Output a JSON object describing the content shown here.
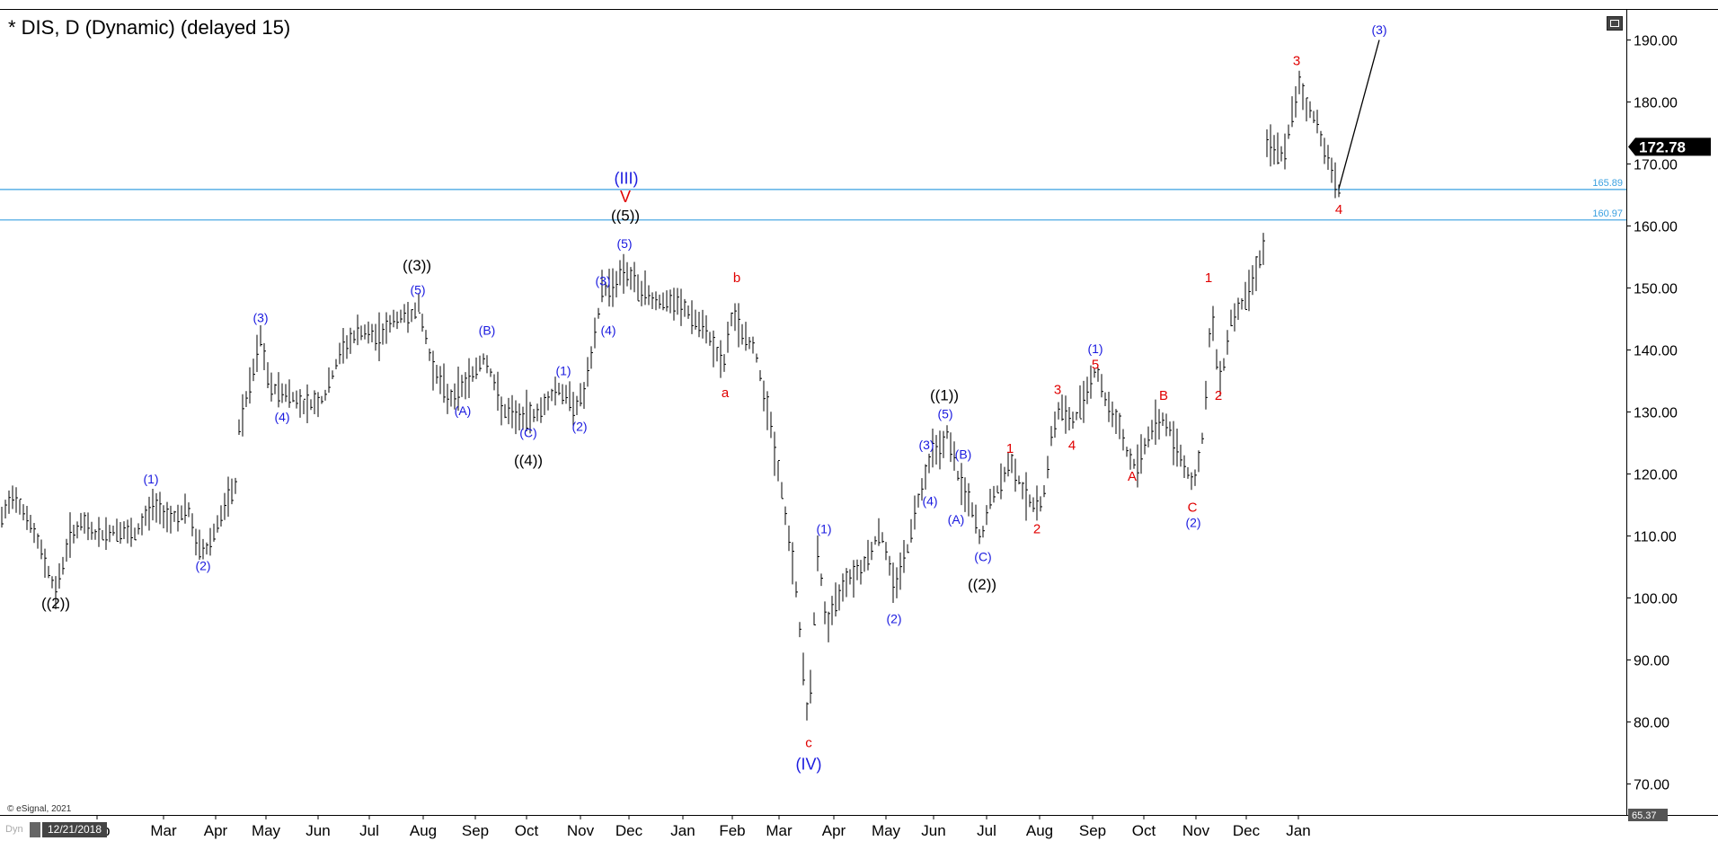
{
  "chart_title": "* DIS, D (Dynamic) (delayed 15)",
  "copyright": "© eSignal, 2021",
  "dyn_label": "Dyn",
  "date_stamp": "12/21/2018",
  "colors": {
    "blue": "#1a1adf",
    "red": "#e00000",
    "black": "#000000",
    "hline": "#3aa0e0",
    "bars": "#000000",
    "lastPriceBox": "#000000",
    "minBox": "#555555"
  },
  "chart_data": {
    "type": "line",
    "symbol": "DIS",
    "ylim": [
      65,
      195
    ],
    "yticks": [
      70,
      80,
      90,
      100,
      110,
      120,
      130,
      140,
      150,
      160,
      170,
      180,
      190
    ],
    "ytick_labels": [
      "70.00",
      "80.00",
      "90.00",
      "100.00",
      "110.00",
      "120.00",
      "130.00",
      "140.00",
      "150.00",
      "160.00",
      "170.00",
      "180.00",
      "190.00"
    ],
    "x_range": [
      0,
      1810
    ],
    "x_months": [
      {
        "label": "Feb",
        "x": 108
      },
      {
        "label": "Mar",
        "x": 182
      },
      {
        "label": "Apr",
        "x": 240
      },
      {
        "label": "May",
        "x": 296
      },
      {
        "label": "Jun",
        "x": 354
      },
      {
        "label": "Jul",
        "x": 411
      },
      {
        "label": "Aug",
        "x": 471
      },
      {
        "label": "Sep",
        "x": 529
      },
      {
        "label": "Oct",
        "x": 586
      },
      {
        "label": "Nov",
        "x": 646
      },
      {
        "label": "Dec",
        "x": 700
      },
      {
        "label": "Jan",
        "x": 760
      },
      {
        "label": "Feb",
        "x": 815
      },
      {
        "label": "Mar",
        "x": 867
      },
      {
        "label": "Apr",
        "x": 928
      },
      {
        "label": "May",
        "x": 986
      },
      {
        "label": "Jun",
        "x": 1039
      },
      {
        "label": "Jul",
        "x": 1098
      },
      {
        "label": "Aug",
        "x": 1157
      },
      {
        "label": "Sep",
        "x": 1216
      },
      {
        "label": "Oct",
        "x": 1273
      },
      {
        "label": "Nov",
        "x": 1331
      },
      {
        "label": "Dec",
        "x": 1387
      },
      {
        "label": "Jan",
        "x": 1445
      }
    ],
    "price_path": [
      [
        0,
        112
      ],
      [
        15,
        117
      ],
      [
        30,
        113
      ],
      [
        45,
        108
      ],
      [
        62,
        101
      ],
      [
        78,
        110
      ],
      [
        92,
        112
      ],
      [
        110,
        110
      ],
      [
        130,
        111
      ],
      [
        150,
        110
      ],
      [
        170,
        115
      ],
      [
        190,
        113
      ],
      [
        210,
        114
      ],
      [
        220,
        108
      ],
      [
        230,
        108
      ],
      [
        245,
        113
      ],
      [
        262,
        118
      ],
      [
        265,
        127
      ],
      [
        280,
        135
      ],
      [
        290,
        142
      ],
      [
        300,
        134
      ],
      [
        320,
        133
      ],
      [
        340,
        131
      ],
      [
        360,
        132
      ],
      [
        380,
        140
      ],
      [
        400,
        143
      ],
      [
        420,
        142
      ],
      [
        440,
        145
      ],
      [
        460,
        146
      ],
      [
        466,
        147
      ],
      [
        480,
        138
      ],
      [
        500,
        132
      ],
      [
        520,
        135
      ],
      [
        540,
        139
      ],
      [
        560,
        130
      ],
      [
        580,
        129
      ],
      [
        600,
        130
      ],
      [
        620,
        134
      ],
      [
        640,
        131
      ],
      [
        650,
        133
      ],
      [
        660,
        140
      ],
      [
        670,
        150
      ],
      [
        680,
        150
      ],
      [
        695,
        153
      ],
      [
        710,
        150
      ],
      [
        730,
        148
      ],
      [
        760,
        147
      ],
      [
        790,
        142
      ],
      [
        805,
        137
      ],
      [
        815,
        146
      ],
      [
        825,
        143
      ],
      [
        840,
        140
      ],
      [
        855,
        130
      ],
      [
        870,
        117
      ],
      [
        885,
        103
      ],
      [
        893,
        90
      ],
      [
        900,
        79
      ],
      [
        910,
        108
      ],
      [
        920,
        95
      ],
      [
        940,
        103
      ],
      [
        960,
        105
      ],
      [
        980,
        111
      ],
      [
        995,
        102
      ],
      [
        1010,
        108
      ],
      [
        1020,
        115
      ],
      [
        1030,
        120
      ],
      [
        1040,
        125
      ],
      [
        1048,
        124
      ],
      [
        1055,
        127
      ],
      [
        1065,
        120
      ],
      [
        1080,
        115
      ],
      [
        1092,
        109
      ],
      [
        1100,
        115
      ],
      [
        1112,
        118
      ],
      [
        1125,
        122
      ],
      [
        1140,
        117
      ],
      [
        1155,
        114
      ],
      [
        1163,
        118
      ],
      [
        1170,
        126
      ],
      [
        1180,
        131
      ],
      [
        1192,
        128
      ],
      [
        1200,
        130
      ],
      [
        1210,
        134
      ],
      [
        1220,
        137
      ],
      [
        1230,
        132
      ],
      [
        1245,
        128
      ],
      [
        1255,
        123
      ],
      [
        1265,
        121
      ],
      [
        1280,
        127
      ],
      [
        1295,
        129
      ],
      [
        1305,
        126
      ],
      [
        1320,
        121
      ],
      [
        1328,
        118
      ],
      [
        1340,
        127
      ],
      [
        1348,
        147
      ],
      [
        1355,
        137
      ],
      [
        1360,
        136
      ],
      [
        1370,
        145
      ],
      [
        1385,
        148
      ],
      [
        1395,
        152
      ],
      [
        1405,
        156
      ],
      [
        1408,
        157
      ],
      [
        1410,
        173
      ],
      [
        1420,
        172
      ],
      [
        1430,
        172
      ],
      [
        1440,
        179
      ],
      [
        1446,
        183
      ],
      [
        1455,
        179
      ],
      [
        1465,
        177
      ],
      [
        1475,
        172
      ],
      [
        1482,
        169
      ],
      [
        1490,
        166
      ],
      [
        1535,
        190
      ]
    ],
    "last_price": 172.78,
    "last_price_label": "172.78",
    "min_label": "65.37",
    "hlines": [
      {
        "value": 165.89,
        "label": "165.89"
      },
      {
        "value": 160.97,
        "label": "160.97"
      }
    ],
    "annotations": [
      {
        "text": "((2))",
        "x": 62,
        "y": 99,
        "color": "black",
        "size": 17
      },
      {
        "text": "(1)",
        "x": 168,
        "y": 119,
        "color": "blue",
        "size": 14
      },
      {
        "text": "(2)",
        "x": 226,
        "y": 105,
        "color": "blue",
        "size": 14
      },
      {
        "text": "(3)",
        "x": 290,
        "y": 145,
        "color": "blue",
        "size": 14
      },
      {
        "text": "(4)",
        "x": 314,
        "y": 129,
        "color": "blue",
        "size": 14
      },
      {
        "text": "((3))",
        "x": 464,
        "y": 153.5,
        "color": "black",
        "size": 17
      },
      {
        "text": "(5)",
        "x": 465,
        "y": 149.5,
        "color": "blue",
        "size": 14
      },
      {
        "text": "(B)",
        "x": 542,
        "y": 143,
        "color": "blue",
        "size": 14
      },
      {
        "text": "(A)",
        "x": 515,
        "y": 130,
        "color": "blue",
        "size": 14
      },
      {
        "text": "(1)",
        "x": 627,
        "y": 136.5,
        "color": "blue",
        "size": 14
      },
      {
        "text": "(C)",
        "x": 588,
        "y": 126.5,
        "color": "blue",
        "size": 14
      },
      {
        "text": "((4))",
        "x": 588,
        "y": 122,
        "color": "black",
        "size": 17
      },
      {
        "text": "(2)",
        "x": 645,
        "y": 127.5,
        "color": "blue",
        "size": 14
      },
      {
        "text": "(3)",
        "x": 671,
        "y": 151,
        "color": "blue",
        "size": 14
      },
      {
        "text": "(4)",
        "x": 677,
        "y": 143,
        "color": "blue",
        "size": 14
      },
      {
        "text": "(5)",
        "x": 695,
        "y": 157,
        "color": "blue",
        "size": 14
      },
      {
        "text": "((5))",
        "x": 696,
        "y": 161.5,
        "color": "black",
        "size": 17
      },
      {
        "text": "V",
        "x": 696,
        "y": 164.5,
        "color": "red",
        "size": 18
      },
      {
        "text": "(III)",
        "x": 697,
        "y": 167.5,
        "color": "blue",
        "size": 18
      },
      {
        "text": "b",
        "x": 820,
        "y": 151.5,
        "color": "red",
        "size": 15
      },
      {
        "text": "a",
        "x": 807,
        "y": 133,
        "color": "red",
        "size": 15
      },
      {
        "text": "(1)",
        "x": 917,
        "y": 111,
        "color": "blue",
        "size": 14
      },
      {
        "text": "(2)",
        "x": 995,
        "y": 96.5,
        "color": "blue",
        "size": 14
      },
      {
        "text": "c",
        "x": 900,
        "y": 76.5,
        "color": "red",
        "size": 15
      },
      {
        "text": "(IV)",
        "x": 900,
        "y": 73,
        "color": "blue",
        "size": 18
      },
      {
        "text": "((1))",
        "x": 1051,
        "y": 132.5,
        "color": "black",
        "size": 17
      },
      {
        "text": "(5)",
        "x": 1052,
        "y": 129.5,
        "color": "blue",
        "size": 14
      },
      {
        "text": "(3)",
        "x": 1031,
        "y": 124.5,
        "color": "blue",
        "size": 14
      },
      {
        "text": "(B)",
        "x": 1072,
        "y": 123,
        "color": "blue",
        "size": 14
      },
      {
        "text": "(4)",
        "x": 1035,
        "y": 115.5,
        "color": "blue",
        "size": 14
      },
      {
        "text": "(A)",
        "x": 1064,
        "y": 112.5,
        "color": "blue",
        "size": 14
      },
      {
        "text": "(C)",
        "x": 1094,
        "y": 106.5,
        "color": "blue",
        "size": 14
      },
      {
        "text": "((2))",
        "x": 1093,
        "y": 102,
        "color": "black",
        "size": 17
      },
      {
        "text": "1",
        "x": 1124,
        "y": 124,
        "color": "red",
        "size": 15
      },
      {
        "text": "2",
        "x": 1154,
        "y": 111,
        "color": "red",
        "size": 15
      },
      {
        "text": "3",
        "x": 1177,
        "y": 133.5,
        "color": "red",
        "size": 15
      },
      {
        "text": "4",
        "x": 1193,
        "y": 124.5,
        "color": "red",
        "size": 15
      },
      {
        "text": "(1)",
        "x": 1219,
        "y": 140,
        "color": "blue",
        "size": 14
      },
      {
        "text": "5",
        "x": 1219,
        "y": 137.5,
        "color": "red",
        "size": 15
      },
      {
        "text": "B",
        "x": 1295,
        "y": 132.5,
        "color": "red",
        "size": 15
      },
      {
        "text": "A",
        "x": 1260,
        "y": 119.5,
        "color": "red",
        "size": 15
      },
      {
        "text": "C",
        "x": 1327,
        "y": 114.5,
        "color": "red",
        "size": 15
      },
      {
        "text": "(2)",
        "x": 1328,
        "y": 112,
        "color": "blue",
        "size": 14
      },
      {
        "text": "1",
        "x": 1345,
        "y": 151.5,
        "color": "red",
        "size": 15
      },
      {
        "text": "2",
        "x": 1356,
        "y": 132.5,
        "color": "red",
        "size": 15
      },
      {
        "text": "3",
        "x": 1443,
        "y": 186.5,
        "color": "red",
        "size": 15
      },
      {
        "text": "4",
        "x": 1490,
        "y": 162.5,
        "color": "red",
        "size": 15
      },
      {
        "text": "(3)",
        "x": 1535,
        "y": 191.5,
        "color": "blue",
        "size": 14
      }
    ]
  }
}
